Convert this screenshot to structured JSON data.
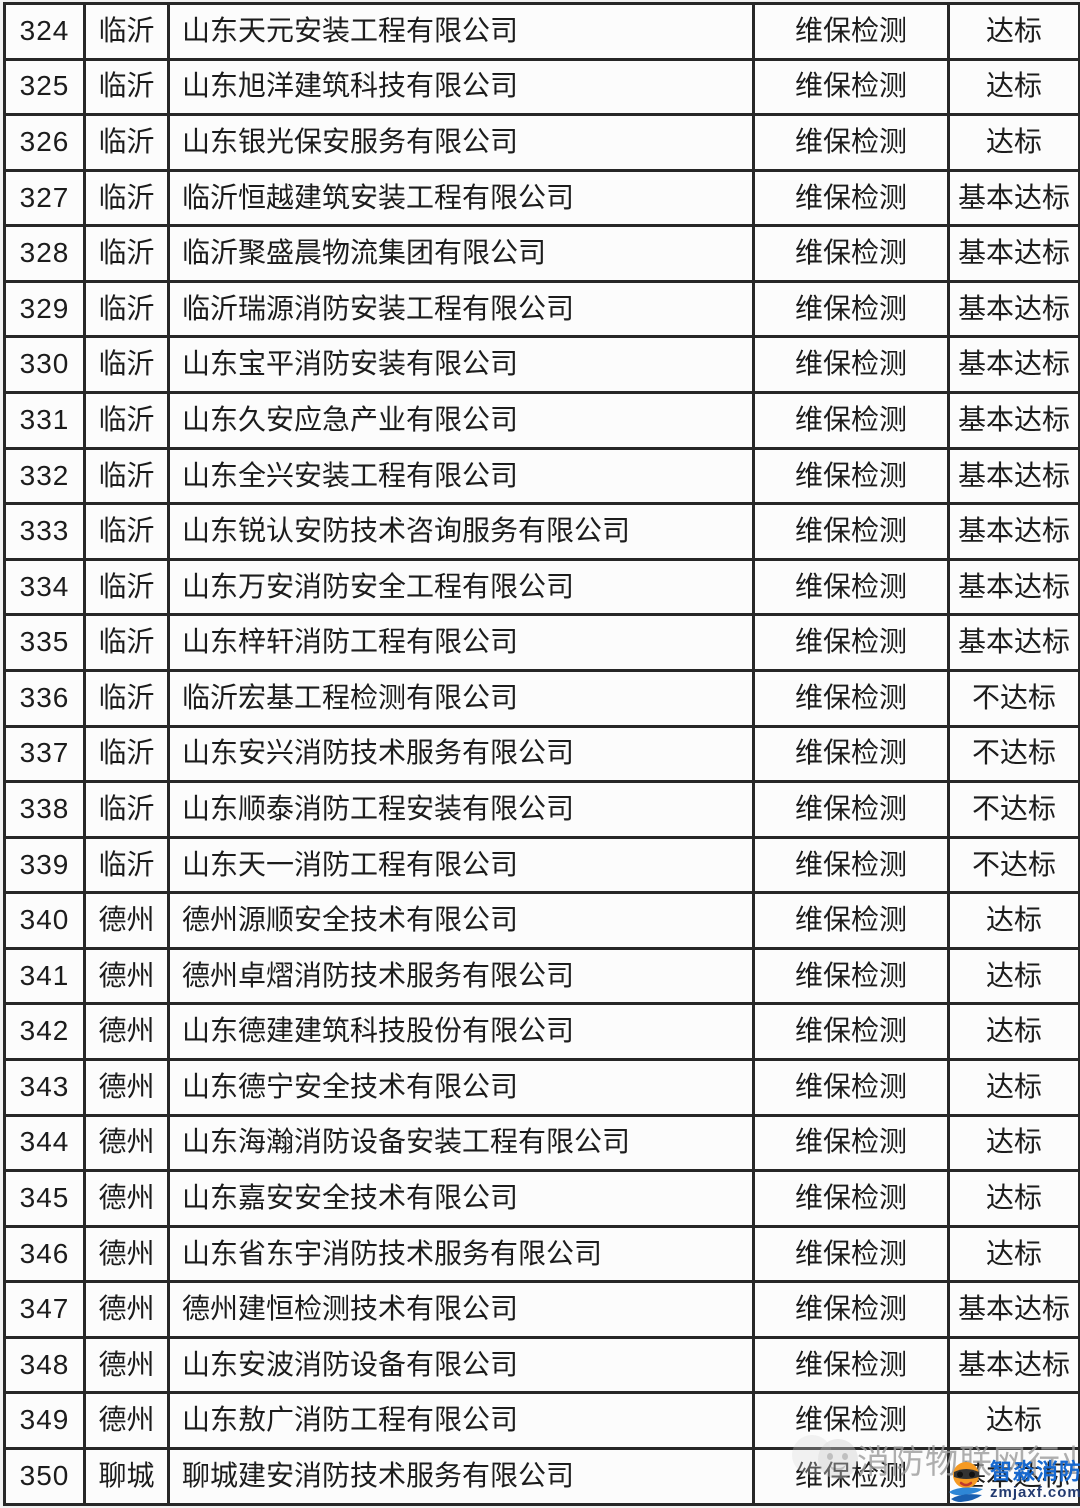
{
  "table": {
    "rows": [
      {
        "no": "324",
        "city": "临沂",
        "company": "山东天元安装工程有限公司",
        "service": "维保检测",
        "result": "达标"
      },
      {
        "no": "325",
        "city": "临沂",
        "company": "山东旭洋建筑科技有限公司",
        "service": "维保检测",
        "result": "达标"
      },
      {
        "no": "326",
        "city": "临沂",
        "company": "山东银光保安服务有限公司",
        "service": "维保检测",
        "result": "达标"
      },
      {
        "no": "327",
        "city": "临沂",
        "company": "临沂恒越建筑安装工程有限公司",
        "service": "维保检测",
        "result": "基本达标"
      },
      {
        "no": "328",
        "city": "临沂",
        "company": "临沂聚盛晨物流集团有限公司",
        "service": "维保检测",
        "result": "基本达标"
      },
      {
        "no": "329",
        "city": "临沂",
        "company": "临沂瑞源消防安装工程有限公司",
        "service": "维保检测",
        "result": "基本达标"
      },
      {
        "no": "330",
        "city": "临沂",
        "company": "山东宝平消防安装有限公司",
        "service": "维保检测",
        "result": "基本达标"
      },
      {
        "no": "331",
        "city": "临沂",
        "company": "山东久安应急产业有限公司",
        "service": "维保检测",
        "result": "基本达标"
      },
      {
        "no": "332",
        "city": "临沂",
        "company": "山东全兴安装工程有限公司",
        "service": "维保检测",
        "result": "基本达标"
      },
      {
        "no": "333",
        "city": "临沂",
        "company": "山东锐认安防技术咨询服务有限公司",
        "service": "维保检测",
        "result": "基本达标"
      },
      {
        "no": "334",
        "city": "临沂",
        "company": "山东万安消防安全工程有限公司",
        "service": "维保检测",
        "result": "基本达标"
      },
      {
        "no": "335",
        "city": "临沂",
        "company": "山东梓轩消防工程有限公司",
        "service": "维保检测",
        "result": "基本达标"
      },
      {
        "no": "336",
        "city": "临沂",
        "company": "临沂宏基工程检测有限公司",
        "service": "维保检测",
        "result": "不达标"
      },
      {
        "no": "337",
        "city": "临沂",
        "company": "山东安兴消防技术服务有限公司",
        "service": "维保检测",
        "result": "不达标"
      },
      {
        "no": "338",
        "city": "临沂",
        "company": "山东顺泰消防工程安装有限公司",
        "service": "维保检测",
        "result": "不达标"
      },
      {
        "no": "339",
        "city": "临沂",
        "company": "山东天一消防工程有限公司",
        "service": "维保检测",
        "result": "不达标"
      },
      {
        "no": "340",
        "city": "德州",
        "company": "德州源顺安全技术有限公司",
        "service": "维保检测",
        "result": "达标"
      },
      {
        "no": "341",
        "city": "德州",
        "company": "德州卓熠消防技术服务有限公司",
        "service": "维保检测",
        "result": "达标"
      },
      {
        "no": "342",
        "city": "德州",
        "company": "山东德建建筑科技股份有限公司",
        "service": "维保检测",
        "result": "达标"
      },
      {
        "no": "343",
        "city": "德州",
        "company": "山东德宁安全技术有限公司",
        "service": "维保检测",
        "result": "达标"
      },
      {
        "no": "344",
        "city": "德州",
        "company": "山东海瀚消防设备安装工程有限公司",
        "service": "维保检测",
        "result": "达标"
      },
      {
        "no": "345",
        "city": "德州",
        "company": "山东嘉安安全技术有限公司",
        "service": "维保检测",
        "result": "达标"
      },
      {
        "no": "346",
        "city": "德州",
        "company": "山东省东宇消防技术服务有限公司",
        "service": "维保检测",
        "result": "达标"
      },
      {
        "no": "347",
        "city": "德州",
        "company": "德州建恒检测技术有限公司",
        "service": "维保检测",
        "result": "基本达标"
      },
      {
        "no": "348",
        "city": "德州",
        "company": "山东安波消防设备有限公司",
        "service": "维保检测",
        "result": "基本达标"
      },
      {
        "no": "349",
        "city": "德州",
        "company": "山东敖广消防工程有限公司",
        "service": "维保检测",
        "result": "达标"
      },
      {
        "no": "350",
        "city": "聊城",
        "company": "聊城建安消防技术服务有限公司",
        "service": "维保检测",
        "result": "基本达标"
      }
    ]
  },
  "watermark": {
    "gray_text": "消防物联网行业",
    "logo_name": "智淼消防",
    "logo_site": "zmjaxf.com"
  },
  "colors": {
    "border": "#272727",
    "cell_bg": "#fcfcfc",
    "text": "#1c1c1c",
    "watermark_gray": "#9b9b9b",
    "logo_blue": "#1668cf",
    "logo_dark": "#223a70",
    "logo_orange": "#f59a23"
  }
}
